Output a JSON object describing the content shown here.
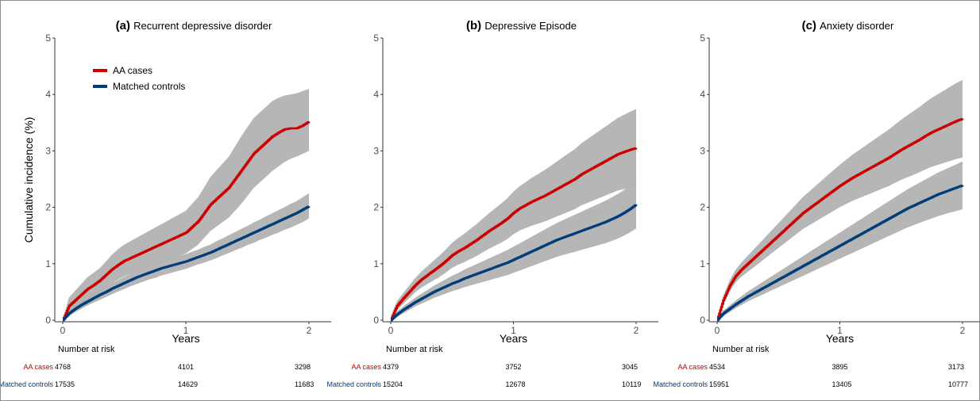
{
  "colors": {
    "cases": "#cc0000",
    "controls": "#003c78",
    "ci_band": "#b2b2b2",
    "axis": "#333333"
  },
  "legend": {
    "placement": "top-left of panel (a)",
    "items": [
      {
        "label": "AA cases",
        "color": "#cc0000"
      },
      {
        "label": "Matched controls",
        "color": "#003c78"
      }
    ]
  },
  "y_axis_label": "Cumulative incidence (%)",
  "x_axis_label": "Years",
  "risk_table_title": "Number at risk",
  "chart_data": [
    {
      "type": "line",
      "title_letter": "(a)",
      "title_text": "Recurrent depressive disorder",
      "xlabel": "Years",
      "ylabel": "Cumulative incidence (%)",
      "xlim": [
        0,
        2
      ],
      "ylim": [
        0,
        5
      ],
      "x_ticks": [
        "0",
        "1",
        "2"
      ],
      "y_ticks": [
        "0",
        "1",
        "2",
        "3",
        "4",
        "5"
      ],
      "grid": false,
      "series": [
        {
          "name": "AA cases",
          "x": [
            0,
            0.05,
            0.1,
            0.15,
            0.2,
            0.25,
            0.3,
            0.35,
            0.4,
            0.45,
            0.5,
            0.55,
            0.6,
            0.65,
            0.7,
            0.75,
            0.8,
            0.85,
            0.9,
            0.95,
            1.0,
            1.05,
            1.1,
            1.15,
            1.2,
            1.25,
            1.3,
            1.35,
            1.4,
            1.45,
            1.5,
            1.55,
            1.6,
            1.65,
            1.7,
            1.75,
            1.8,
            1.85,
            1.9,
            1.95,
            2.0
          ],
          "y": [
            0,
            0.25,
            0.35,
            0.45,
            0.55,
            0.62,
            0.7,
            0.8,
            0.9,
            0.98,
            1.05,
            1.1,
            1.15,
            1.2,
            1.25,
            1.3,
            1.35,
            1.4,
            1.45,
            1.5,
            1.55,
            1.65,
            1.75,
            1.9,
            2.05,
            2.15,
            2.25,
            2.35,
            2.5,
            2.65,
            2.8,
            2.95,
            3.05,
            3.15,
            3.25,
            3.32,
            3.38,
            3.4,
            3.4,
            3.45,
            3.52
          ],
          "lower": [
            0,
            0.1,
            0.2,
            0.28,
            0.36,
            0.42,
            0.5,
            0.58,
            0.66,
            0.72,
            0.78,
            0.82,
            0.86,
            0.9,
            0.94,
            0.98,
            1.02,
            1.06,
            1.1,
            1.14,
            1.18,
            1.26,
            1.34,
            1.46,
            1.58,
            1.66,
            1.74,
            1.82,
            1.94,
            2.06,
            2.2,
            2.34,
            2.44,
            2.54,
            2.64,
            2.72,
            2.8,
            2.86,
            2.9,
            2.95,
            3.0
          ],
          "upper": [
            0,
            0.4,
            0.52,
            0.64,
            0.76,
            0.84,
            0.92,
            1.04,
            1.16,
            1.26,
            1.34,
            1.4,
            1.46,
            1.52,
            1.58,
            1.64,
            1.7,
            1.76,
            1.82,
            1.88,
            1.94,
            2.06,
            2.18,
            2.36,
            2.54,
            2.66,
            2.78,
            2.9,
            3.08,
            3.26,
            3.42,
            3.58,
            3.68,
            3.78,
            3.88,
            3.94,
            3.98,
            4.0,
            4.02,
            4.06,
            4.1
          ]
        },
        {
          "name": "Matched controls",
          "x": [
            0,
            0.05,
            0.1,
            0.15,
            0.2,
            0.25,
            0.3,
            0.35,
            0.4,
            0.45,
            0.5,
            0.55,
            0.6,
            0.65,
            0.7,
            0.75,
            0.8,
            0.85,
            0.9,
            0.95,
            1.0,
            1.05,
            1.1,
            1.15,
            1.2,
            1.25,
            1.3,
            1.35,
            1.4,
            1.45,
            1.5,
            1.55,
            1.6,
            1.65,
            1.7,
            1.75,
            1.8,
            1.85,
            1.9,
            1.95,
            2.0
          ],
          "y": [
            0,
            0.12,
            0.2,
            0.27,
            0.33,
            0.39,
            0.45,
            0.5,
            0.56,
            0.61,
            0.66,
            0.71,
            0.76,
            0.8,
            0.84,
            0.88,
            0.92,
            0.95,
            0.98,
            1.01,
            1.04,
            1.08,
            1.12,
            1.16,
            1.2,
            1.25,
            1.3,
            1.35,
            1.4,
            1.45,
            1.5,
            1.55,
            1.6,
            1.65,
            1.7,
            1.75,
            1.8,
            1.85,
            1.9,
            1.96,
            2.02
          ],
          "lower": [
            0,
            0.07,
            0.14,
            0.2,
            0.26,
            0.31,
            0.36,
            0.41,
            0.46,
            0.51,
            0.55,
            0.6,
            0.64,
            0.68,
            0.72,
            0.75,
            0.79,
            0.82,
            0.85,
            0.88,
            0.91,
            0.95,
            0.99,
            1.02,
            1.06,
            1.1,
            1.15,
            1.19,
            1.24,
            1.28,
            1.33,
            1.37,
            1.42,
            1.46,
            1.51,
            1.55,
            1.6,
            1.64,
            1.69,
            1.74,
            1.8
          ],
          "upper": [
            0,
            0.17,
            0.26,
            0.34,
            0.4,
            0.47,
            0.54,
            0.59,
            0.66,
            0.71,
            0.77,
            0.82,
            0.88,
            0.92,
            0.96,
            1.01,
            1.05,
            1.08,
            1.11,
            1.14,
            1.17,
            1.21,
            1.25,
            1.3,
            1.34,
            1.4,
            1.45,
            1.51,
            1.56,
            1.62,
            1.67,
            1.73,
            1.78,
            1.84,
            1.89,
            1.95,
            2.0,
            2.06,
            2.11,
            2.18,
            2.25
          ]
        }
      ],
      "risk_table": {
        "AA cases": [
          "4768",
          "4101",
          "3298"
        ],
        "Matched controls": [
          "17535",
          "14629",
          "11683"
        ]
      }
    },
    {
      "type": "line",
      "title_letter": "(b)",
      "title_text": "Depressive Episode",
      "xlabel": "Years",
      "ylabel": "",
      "xlim": [
        0,
        2
      ],
      "ylim": [
        0,
        5
      ],
      "x_ticks": [
        "0",
        "1",
        "2"
      ],
      "y_ticks": [
        "0",
        "1",
        "2",
        "3",
        "4",
        "5"
      ],
      "grid": false,
      "series": [
        {
          "name": "AA cases",
          "x": [
            0,
            0.05,
            0.1,
            0.15,
            0.2,
            0.25,
            0.3,
            0.35,
            0.4,
            0.45,
            0.5,
            0.55,
            0.6,
            0.65,
            0.7,
            0.75,
            0.8,
            0.85,
            0.9,
            0.95,
            1.0,
            1.05,
            1.1,
            1.15,
            1.2,
            1.25,
            1.3,
            1.35,
            1.4,
            1.45,
            1.5,
            1.55,
            1.6,
            1.65,
            1.7,
            1.75,
            1.8,
            1.85,
            1.9,
            1.95,
            2.0
          ],
          "y": [
            0,
            0.25,
            0.38,
            0.5,
            0.62,
            0.72,
            0.8,
            0.88,
            0.96,
            1.05,
            1.15,
            1.22,
            1.28,
            1.35,
            1.42,
            1.5,
            1.58,
            1.65,
            1.72,
            1.8,
            1.9,
            1.98,
            2.04,
            2.1,
            2.15,
            2.2,
            2.26,
            2.32,
            2.38,
            2.44,
            2.5,
            2.58,
            2.64,
            2.7,
            2.76,
            2.82,
            2.88,
            2.94,
            2.98,
            3.02,
            3.05
          ]
        },
        {
          "name": "Matched controls",
          "x": [
            0,
            0.05,
            0.1,
            0.15,
            0.2,
            0.25,
            0.3,
            0.35,
            0.4,
            0.45,
            0.5,
            0.55,
            0.6,
            0.65,
            0.7,
            0.75,
            0.8,
            0.85,
            0.9,
            0.95,
            1.0,
            1.05,
            1.1,
            1.15,
            1.2,
            1.25,
            1.3,
            1.35,
            1.4,
            1.45,
            1.5,
            1.55,
            1.6,
            1.65,
            1.7,
            1.75,
            1.8,
            1.85,
            1.9,
            1.95,
            2.0
          ],
          "y": [
            0,
            0.1,
            0.18,
            0.25,
            0.32,
            0.38,
            0.44,
            0.5,
            0.55,
            0.6,
            0.65,
            0.69,
            0.74,
            0.78,
            0.82,
            0.86,
            0.9,
            0.94,
            0.98,
            1.02,
            1.07,
            1.12,
            1.17,
            1.22,
            1.27,
            1.32,
            1.37,
            1.42,
            1.46,
            1.5,
            1.54,
            1.58,
            1.62,
            1.66,
            1.7,
            1.74,
            1.79,
            1.84,
            1.9,
            1.97,
            2.05
          ]
        }
      ],
      "risk_table": {
        "AA cases": [
          "4379",
          "3752",
          "3045"
        ],
        "Matched controls": [
          "15204",
          "12678",
          "10119"
        ]
      }
    },
    {
      "type": "line",
      "title_letter": "(c)",
      "title_text": "Anxiety disorder",
      "xlabel": "Years",
      "ylabel": "",
      "xlim": [
        0,
        2
      ],
      "ylim": [
        0,
        5
      ],
      "x_ticks": [
        "0",
        "1",
        "2"
      ],
      "y_ticks": [
        "0",
        "1",
        "2",
        "3",
        "4",
        "5"
      ],
      "grid": false,
      "series": [
        {
          "name": "AA cases",
          "x": [
            0,
            0.05,
            0.1,
            0.15,
            0.2,
            0.25,
            0.3,
            0.35,
            0.4,
            0.45,
            0.5,
            0.55,
            0.6,
            0.65,
            0.7,
            0.75,
            0.8,
            0.85,
            0.9,
            0.95,
            1.0,
            1.05,
            1.1,
            1.15,
            1.2,
            1.25,
            1.3,
            1.35,
            1.4,
            1.45,
            1.5,
            1.55,
            1.6,
            1.65,
            1.7,
            1.75,
            1.8,
            1.85,
            1.9,
            1.95,
            2.0
          ],
          "y": [
            0,
            0.35,
            0.6,
            0.78,
            0.9,
            1.0,
            1.1,
            1.2,
            1.3,
            1.4,
            1.5,
            1.6,
            1.7,
            1.8,
            1.9,
            1.98,
            2.06,
            2.14,
            2.22,
            2.3,
            2.38,
            2.45,
            2.52,
            2.58,
            2.64,
            2.7,
            2.76,
            2.82,
            2.88,
            2.95,
            3.02,
            3.08,
            3.14,
            3.2,
            3.27,
            3.33,
            3.38,
            3.43,
            3.48,
            3.53,
            3.57
          ]
        },
        {
          "name": "Matched controls",
          "x": [
            0,
            0.05,
            0.1,
            0.15,
            0.2,
            0.25,
            0.3,
            0.35,
            0.4,
            0.45,
            0.5,
            0.55,
            0.6,
            0.65,
            0.7,
            0.75,
            0.8,
            0.85,
            0.9,
            0.95,
            1.0,
            1.05,
            1.1,
            1.15,
            1.2,
            1.25,
            1.3,
            1.35,
            1.4,
            1.45,
            1.5,
            1.55,
            1.6,
            1.65,
            1.7,
            1.75,
            1.8,
            1.85,
            1.9,
            1.95,
            2.0
          ],
          "y": [
            0,
            0.12,
            0.2,
            0.28,
            0.35,
            0.42,
            0.48,
            0.54,
            0.6,
            0.66,
            0.72,
            0.78,
            0.84,
            0.9,
            0.96,
            1.02,
            1.08,
            1.14,
            1.2,
            1.26,
            1.32,
            1.38,
            1.44,
            1.5,
            1.56,
            1.62,
            1.68,
            1.74,
            1.8,
            1.86,
            1.92,
            1.98,
            2.03,
            2.08,
            2.13,
            2.18,
            2.23,
            2.27,
            2.31,
            2.35,
            2.39
          ]
        }
      ],
      "risk_table": {
        "AA cases": [
          "4534",
          "3895",
          "3173"
        ],
        "Matched controls": [
          "15951",
          "13405",
          "10777"
        ]
      }
    }
  ]
}
